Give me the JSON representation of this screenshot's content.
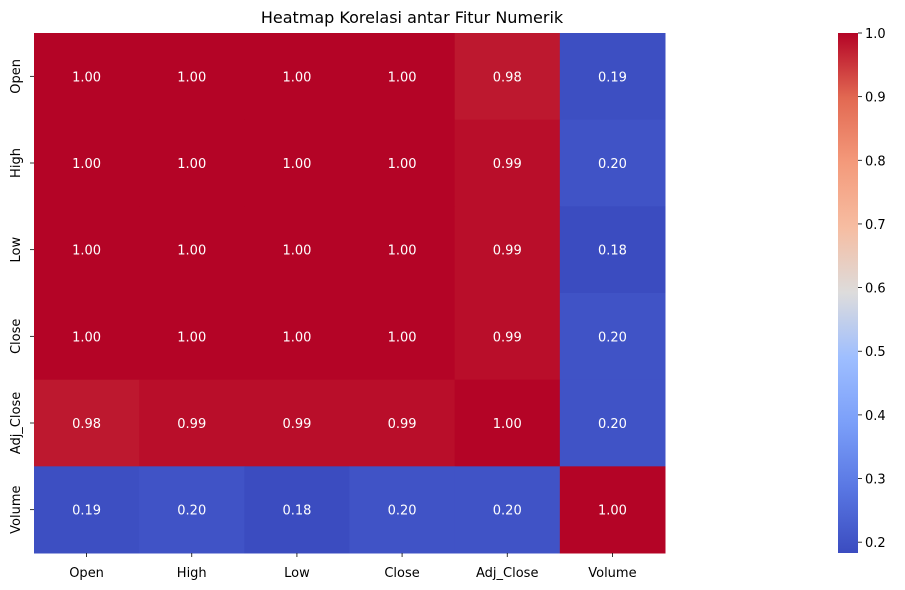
{
  "chart_data": {
    "type": "heatmap",
    "title": "Heatmap Korelasi antar Fitur Numerik",
    "xlabels": [
      "Open",
      "High",
      "Low",
      "Close",
      "Adj_Close",
      "Volume"
    ],
    "ylabels": [
      "Open",
      "High",
      "Low",
      "Close",
      "Adj_Close",
      "Volume"
    ],
    "values": [
      [
        1.0,
        1.0,
        1.0,
        1.0,
        0.98,
        0.19
      ],
      [
        1.0,
        1.0,
        1.0,
        1.0,
        0.99,
        0.2
      ],
      [
        1.0,
        1.0,
        1.0,
        1.0,
        0.99,
        0.18
      ],
      [
        1.0,
        1.0,
        1.0,
        1.0,
        0.99,
        0.2
      ],
      [
        0.98,
        0.99,
        0.99,
        0.99,
        1.0,
        0.2
      ],
      [
        0.19,
        0.2,
        0.18,
        0.2,
        0.2,
        1.0
      ]
    ],
    "annotations": [
      [
        "1.00",
        "1.00",
        "1.00",
        "1.00",
        "0.98",
        "0.19"
      ],
      [
        "1.00",
        "1.00",
        "1.00",
        "1.00",
        "0.99",
        "0.20"
      ],
      [
        "1.00",
        "1.00",
        "1.00",
        "1.00",
        "0.99",
        "0.18"
      ],
      [
        "1.00",
        "1.00",
        "1.00",
        "1.00",
        "0.99",
        "0.20"
      ],
      [
        "0.98",
        "0.99",
        "0.99",
        "0.99",
        "1.00",
        "0.20"
      ],
      [
        "0.19",
        "0.20",
        "0.18",
        "0.20",
        "0.20",
        "1.00"
      ]
    ],
    "colormap": "coolwarm",
    "vmin": 0.183,
    "vmax": 1.0,
    "colorbar_ticks": [
      "0.2",
      "0.3",
      "0.4",
      "0.5",
      "0.6",
      "0.7",
      "0.8",
      "0.9",
      "1.0"
    ],
    "colorbar_tick_values": [
      0.2,
      0.3,
      0.4,
      0.5,
      0.6,
      0.7,
      0.8,
      0.9,
      1.0
    ]
  }
}
